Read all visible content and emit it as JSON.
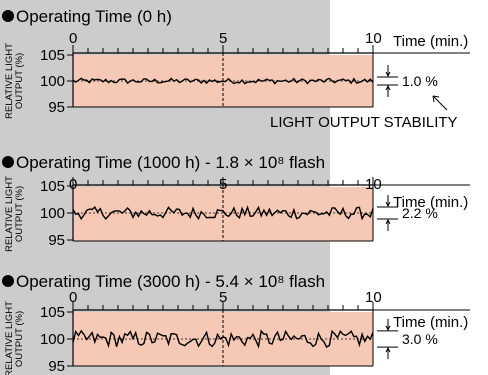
{
  "chart_data": [
    {
      "type": "line",
      "title": "Operating Time (0 h)",
      "xlabel": "Time (min.)",
      "ylabel": [
        "RELATIVE LIGHT",
        "OUTPUT (%)"
      ],
      "x_ticks": [
        "0",
        "5",
        "10"
      ],
      "y_ticks": [
        "105",
        "100",
        "95"
      ],
      "xlim": [
        0,
        10
      ],
      "ylim": [
        95,
        105
      ],
      "variation_label": "1.0 %",
      "annotation": "LIGHT OUTPUT STABILITY",
      "noise_amplitude": 0.5,
      "wiggle_count": 110
    },
    {
      "type": "line",
      "title": "Operating Time (1000 h) - 1.8 × 10⁸ flash",
      "xlabel": "Time (min.)",
      "ylabel": [
        "RELATIVE LIGHT",
        "OUTPUT (%)"
      ],
      "x_ticks": [
        "0",
        "5",
        "10"
      ],
      "y_ticks": [
        "105",
        "100",
        "95"
      ],
      "xlim": [
        0,
        10
      ],
      "ylim": [
        95,
        105
      ],
      "variation_label": "2.2 %",
      "noise_amplitude": 1.1,
      "wiggle_count": 110
    },
    {
      "type": "line",
      "title": "Operating Time (3000 h) - 5.4 × 10⁸ flash",
      "xlabel": "Time (min.)",
      "ylabel": [
        "RELATIVE LIGHT",
        "OUTPUT (%)"
      ],
      "x_ticks": [
        "0",
        "5",
        "10"
      ],
      "y_ticks": [
        "105",
        "100",
        "95"
      ],
      "xlim": [
        0,
        10
      ],
      "ylim": [
        95,
        105
      ],
      "variation_label": "3.0 %",
      "noise_amplitude": 1.5,
      "wiggle_count": 110
    }
  ],
  "colors": {
    "plot_fill": "#f6c9b6",
    "page_gray": "#cccccc",
    "line": "#000000"
  }
}
